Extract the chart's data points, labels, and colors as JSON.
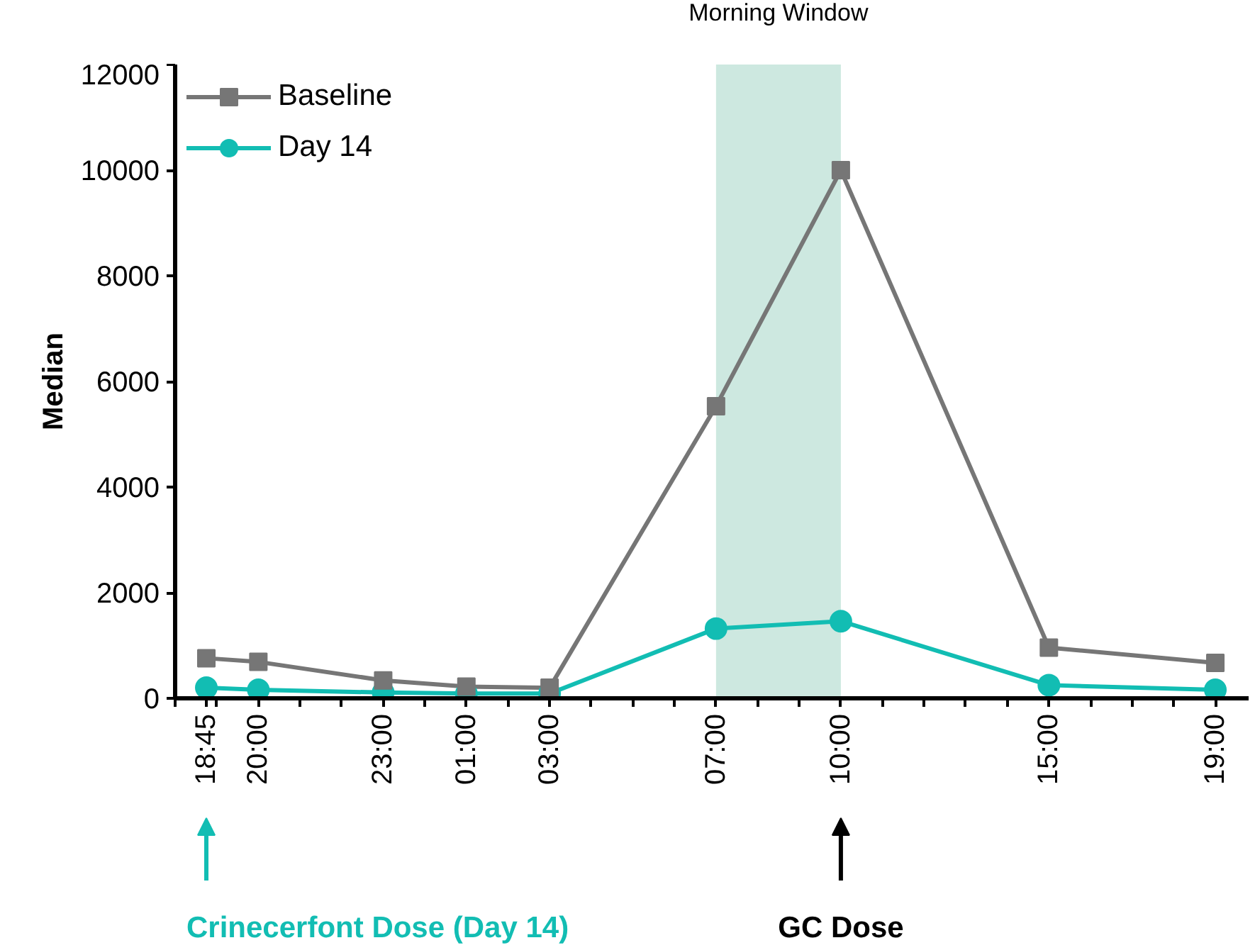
{
  "chart_data": {
    "type": "line",
    "ylabel": "Median",
    "x": [
      "2000-01-01T18:45",
      "2000-01-01T20:00",
      "2000-01-01T23:00",
      "2000-01-02T01:00",
      "2000-01-02T03:00",
      "2000-01-02T07:00",
      "2000-01-02T10:00",
      "2000-01-02T15:00",
      "2000-01-02T19:00"
    ],
    "xlim": [
      "2000-01-01T18:00",
      "2000-01-02T19:48"
    ],
    "xticks": [
      {
        "value": "2000-01-01T18:45",
        "label": "18:45"
      },
      {
        "value": "2000-01-01T20:00",
        "label": "20:00"
      },
      {
        "value": "2000-01-01T23:00",
        "label": "23:00"
      },
      {
        "value": "2000-01-02T01:00",
        "label": "01:00"
      },
      {
        "value": "2000-01-02T03:00",
        "label": "03:00"
      },
      {
        "value": "2000-01-02T07:00",
        "label": "07:00"
      },
      {
        "value": "2000-01-02T10:00",
        "label": "10:00"
      },
      {
        "value": "2000-01-02T15:00",
        "label": "15:00"
      },
      {
        "value": "2000-01-02T19:00",
        "label": "19:00"
      }
    ],
    "ylim": [
      0,
      12000
    ],
    "yticks": [
      0,
      2000,
      4000,
      6000,
      8000,
      10000,
      12000
    ],
    "series": [
      {
        "name": "Baseline",
        "color": "#767676",
        "marker": "square",
        "values": [
          760,
          690,
          340,
          220,
          200,
          5530,
          10000,
          960,
          670
        ]
      },
      {
        "name": "Day 14",
        "color": "#12bdb3",
        "marker": "circle",
        "values": [
          200,
          160,
          110,
          90,
          90,
          1320,
          1460,
          250,
          160
        ]
      }
    ],
    "bands": [
      {
        "axis": "x",
        "from": "2000-01-02T07:00",
        "to": "2000-01-02T10:00",
        "label": "Morning Window",
        "color": "#cde8e0"
      }
    ],
    "annotations": [
      "Crinecerfont Dose (Day 14)",
      "GC Dose"
    ],
    "legend": "top left",
    "grid": false,
    "line_style": "solid"
  }
}
